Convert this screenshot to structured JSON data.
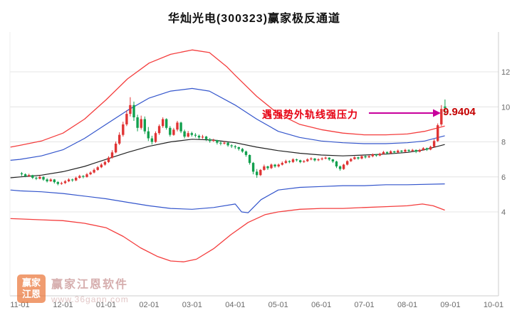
{
  "title": "华灿光电(300323)赢家极反通道",
  "annotation": {
    "text": "遇强势外轨线强压力",
    "price": "9.9404",
    "arrow_color": "#c8009c",
    "text_color": "#e60012"
  },
  "watermark": {
    "logo_line1": "赢家",
    "logo_line2": "江恩",
    "name": "赢家江恩软件",
    "url": "www.36gann.com"
  },
  "chart_data": {
    "type": "candlestick",
    "title": "华灿光电(300323)赢家极反通道",
    "xlabel": "",
    "ylabel": "",
    "ylim": [
      0,
      14
    ],
    "grid": true,
    "last_price": 9.9404,
    "y_ticks": [
      12,
      10,
      8,
      6,
      4
    ],
    "x_ticks": [
      "11-01",
      "12-01",
      "01-01",
      "02-01",
      "03-01",
      "04-01",
      "05-01",
      "06-01",
      "07-01",
      "08-01",
      "09-01",
      "10-01"
    ],
    "candles_per_month": 11.9,
    "colors": {
      "up": "#e03434",
      "down": "#12a04e",
      "grid": "#e4e4e4",
      "frame": "#cccccc",
      "axis_text": "#6b6b6b"
    },
    "lines": [
      {
        "name": "upper-outer-rail-line",
        "color": "#f43d3d",
        "width": 1.3,
        "points": [
          [
            -0.22,
            7.7
          ],
          [
            0,
            7.8
          ],
          [
            0.5,
            8.05
          ],
          [
            1,
            8.5
          ],
          [
            1.5,
            9.3
          ],
          [
            2,
            10.4
          ],
          [
            2.5,
            11.6
          ],
          [
            3,
            12.5
          ],
          [
            3.5,
            13.0
          ],
          [
            4,
            13.25
          ],
          [
            4.4,
            13.1
          ],
          [
            4.8,
            12.3
          ],
          [
            5,
            11.8
          ],
          [
            5.5,
            10.6
          ],
          [
            6,
            9.6
          ],
          [
            6.5,
            9.0
          ],
          [
            7,
            8.7
          ],
          [
            7.5,
            8.5
          ],
          [
            8,
            8.4
          ],
          [
            8.5,
            8.4
          ],
          [
            9,
            8.45
          ],
          [
            9.4,
            8.6
          ],
          [
            9.87,
            8.9
          ]
        ]
      },
      {
        "name": "upper-inner-rail-line",
        "color": "#3355cc",
        "width": 1.2,
        "points": [
          [
            -0.22,
            6.95
          ],
          [
            0,
            7.0
          ],
          [
            0.5,
            7.2
          ],
          [
            1,
            7.55
          ],
          [
            1.5,
            8.2
          ],
          [
            2,
            9.0
          ],
          [
            2.5,
            9.8
          ],
          [
            3,
            10.5
          ],
          [
            3.5,
            10.9
          ],
          [
            4,
            11.05
          ],
          [
            4.4,
            10.9
          ],
          [
            5,
            10.1
          ],
          [
            5.5,
            9.3
          ],
          [
            6,
            8.6
          ],
          [
            6.5,
            8.25
          ],
          [
            7,
            8.05
          ],
          [
            7.5,
            7.95
          ],
          [
            8,
            7.9
          ],
          [
            8.5,
            7.9
          ],
          [
            9,
            7.95
          ],
          [
            9.4,
            8.05
          ],
          [
            9.87,
            8.35
          ]
        ]
      },
      {
        "name": "middle-trend-line",
        "color": "#222222",
        "width": 1.2,
        "points": [
          [
            -0.22,
            5.95
          ],
          [
            0,
            6.0
          ],
          [
            0.5,
            6.1
          ],
          [
            1,
            6.3
          ],
          [
            1.5,
            6.6
          ],
          [
            2,
            7.0
          ],
          [
            2.5,
            7.4
          ],
          [
            3,
            7.75
          ],
          [
            3.5,
            8.0
          ],
          [
            4,
            8.15
          ],
          [
            4.5,
            8.1
          ],
          [
            5,
            7.95
          ],
          [
            5.5,
            7.7
          ],
          [
            6,
            7.5
          ],
          [
            6.5,
            7.35
          ],
          [
            7,
            7.25
          ],
          [
            7.5,
            7.2
          ],
          [
            8,
            7.25
          ],
          [
            8.5,
            7.3
          ],
          [
            9,
            7.4
          ],
          [
            9.4,
            7.55
          ],
          [
            9.87,
            7.85
          ]
        ]
      },
      {
        "name": "lower-inner-rail-line",
        "color": "#3355cc",
        "width": 1.2,
        "points": [
          [
            -0.22,
            5.25
          ],
          [
            0,
            5.2
          ],
          [
            0.5,
            5.15
          ],
          [
            1,
            5.05
          ],
          [
            1.5,
            4.9
          ],
          [
            2,
            4.75
          ],
          [
            2.5,
            4.55
          ],
          [
            3,
            4.35
          ],
          [
            3.5,
            4.2
          ],
          [
            4,
            4.15
          ],
          [
            4.5,
            4.25
          ],
          [
            5,
            4.45
          ],
          [
            5.15,
            4.0
          ],
          [
            5.3,
            3.95
          ],
          [
            5.6,
            4.7
          ],
          [
            6,
            5.25
          ],
          [
            6.5,
            5.4
          ],
          [
            7,
            5.45
          ],
          [
            7.5,
            5.5
          ],
          [
            8,
            5.5
          ],
          [
            8.5,
            5.55
          ],
          [
            9,
            5.55
          ],
          [
            9.87,
            5.6
          ]
        ]
      },
      {
        "name": "lower-outer-rail-line",
        "color": "#f43d3d",
        "width": 1.3,
        "points": [
          [
            -0.22,
            3.62
          ],
          [
            0,
            3.6
          ],
          [
            0.5,
            3.55
          ],
          [
            1,
            3.5
          ],
          [
            1.5,
            3.35
          ],
          [
            2,
            3.1
          ],
          [
            2.4,
            2.6
          ],
          [
            2.8,
            1.95
          ],
          [
            3.2,
            1.45
          ],
          [
            3.5,
            1.2
          ],
          [
            3.8,
            1.15
          ],
          [
            4.1,
            1.3
          ],
          [
            4.5,
            1.9
          ],
          [
            4.9,
            2.7
          ],
          [
            5.3,
            3.4
          ],
          [
            5.7,
            3.85
          ],
          [
            6,
            4.0
          ],
          [
            6.5,
            4.15
          ],
          [
            7,
            4.2
          ],
          [
            7.5,
            4.2
          ],
          [
            8,
            4.25
          ],
          [
            8.5,
            4.3
          ],
          [
            9,
            4.35
          ],
          [
            9.35,
            4.45
          ],
          [
            9.6,
            4.35
          ],
          [
            9.87,
            4.1
          ]
        ]
      }
    ],
    "candles": [
      [
        6.2,
        6.28,
        6.05,
        6.15
      ],
      [
        6.15,
        6.2,
        5.98,
        6.05
      ],
      [
        6.05,
        6.18,
        6.0,
        6.1
      ],
      [
        6.1,
        6.12,
        5.88,
        5.95
      ],
      [
        5.95,
        6.02,
        5.82,
        5.9
      ],
      [
        5.9,
        6.08,
        5.86,
        6.0
      ],
      [
        6.0,
        6.04,
        5.78,
        5.85
      ],
      [
        5.85,
        5.92,
        5.68,
        5.75
      ],
      [
        5.75,
        5.92,
        5.72,
        5.85
      ],
      [
        5.85,
        5.88,
        5.62,
        5.7
      ],
      [
        5.7,
        5.76,
        5.52,
        5.6
      ],
      [
        5.6,
        5.72,
        5.55,
        5.65
      ],
      [
        5.65,
        5.82,
        5.6,
        5.75
      ],
      [
        5.75,
        5.92,
        5.7,
        5.85
      ],
      [
        5.85,
        5.9,
        5.72,
        5.8
      ],
      [
        5.8,
        6.02,
        5.76,
        5.95
      ],
      [
        5.95,
        6.12,
        5.9,
        6.05
      ],
      [
        6.05,
        6.1,
        5.92,
        6.0
      ],
      [
        6.0,
        6.22,
        5.96,
        6.15
      ],
      [
        6.15,
        6.32,
        6.1,
        6.25
      ],
      [
        6.25,
        6.48,
        6.2,
        6.4
      ],
      [
        6.4,
        6.62,
        6.35,
        6.55
      ],
      [
        6.55,
        6.78,
        6.5,
        6.7
      ],
      [
        6.7,
        6.92,
        6.64,
        6.85
      ],
      [
        6.85,
        7.18,
        6.8,
        7.1
      ],
      [
        7.1,
        7.52,
        7.05,
        7.4
      ],
      [
        7.4,
        8.02,
        7.35,
        7.9
      ],
      [
        7.9,
        8.55,
        7.82,
        8.4
      ],
      [
        8.4,
        9.15,
        8.3,
        9.0
      ],
      [
        9.0,
        9.8,
        8.9,
        9.6
      ],
      [
        9.6,
        10.55,
        9.45,
        10.1
      ],
      [
        10.1,
        10.3,
        9.2,
        9.4
      ],
      [
        9.4,
        9.55,
        8.6,
        8.8
      ],
      [
        8.8,
        9.5,
        8.7,
        9.3
      ],
      [
        9.3,
        9.45,
        8.45,
        8.6
      ],
      [
        8.6,
        8.85,
        8.05,
        8.2
      ],
      [
        8.2,
        8.35,
        7.85,
        8.0
      ],
      [
        8.0,
        8.6,
        7.95,
        8.5
      ],
      [
        8.5,
        9.0,
        8.4,
        8.9
      ],
      [
        8.9,
        9.4,
        8.8,
        9.3
      ],
      [
        9.3,
        9.35,
        8.7,
        8.8
      ],
      [
        8.8,
        8.9,
        8.3,
        8.4
      ],
      [
        8.4,
        8.8,
        8.35,
        8.7
      ],
      [
        8.7,
        9.2,
        8.6,
        9.1
      ],
      [
        9.1,
        9.15,
        8.5,
        8.6
      ],
      [
        8.6,
        8.7,
        8.2,
        8.3
      ],
      [
        8.3,
        8.62,
        8.25,
        8.5
      ],
      [
        8.5,
        8.58,
        8.3,
        8.4
      ],
      [
        8.4,
        8.5,
        8.25,
        8.35
      ],
      [
        8.35,
        8.42,
        8.15,
        8.25
      ],
      [
        8.25,
        8.4,
        8.18,
        8.3
      ],
      [
        8.3,
        8.34,
        8.05,
        8.15
      ],
      [
        8.15,
        8.22,
        7.95,
        8.05
      ],
      [
        8.05,
        8.18,
        8.0,
        8.1
      ],
      [
        8.1,
        8.12,
        7.85,
        7.95
      ],
      [
        7.95,
        8.02,
        7.8,
        7.9
      ],
      [
        7.9,
        8.03,
        7.85,
        7.95
      ],
      [
        7.95,
        7.98,
        7.72,
        7.8
      ],
      [
        7.8,
        7.86,
        7.65,
        7.75
      ],
      [
        7.75,
        7.82,
        7.6,
        7.7
      ],
      [
        7.7,
        7.72,
        7.5,
        7.6
      ],
      [
        7.6,
        7.65,
        7.38,
        7.45
      ],
      [
        7.45,
        7.5,
        7.15,
        7.25
      ],
      [
        7.25,
        7.28,
        6.7,
        6.8
      ],
      [
        6.8,
        6.85,
        6.15,
        6.3
      ],
      [
        6.3,
        6.45,
        5.95,
        6.1
      ],
      [
        6.1,
        6.45,
        6.05,
        6.4
      ],
      [
        6.4,
        6.7,
        6.35,
        6.6
      ],
      [
        6.6,
        6.64,
        6.4,
        6.5
      ],
      [
        6.5,
        6.76,
        6.45,
        6.7
      ],
      [
        6.7,
        6.74,
        6.52,
        6.6
      ],
      [
        6.6,
        6.76,
        6.54,
        6.7
      ],
      [
        6.7,
        6.88,
        6.65,
        6.8
      ],
      [
        6.8,
        6.98,
        6.75,
        6.9
      ],
      [
        6.9,
        6.95,
        6.78,
        6.85
      ],
      [
        6.85,
        7.06,
        6.8,
        7.0
      ],
      [
        7.0,
        7.04,
        6.88,
        6.95
      ],
      [
        6.95,
        6.98,
        6.78,
        6.85
      ],
      [
        6.85,
        6.96,
        6.8,
        6.9
      ],
      [
        6.9,
        7.06,
        6.85,
        7.0
      ],
      [
        7.0,
        7.12,
        6.95,
        7.05
      ],
      [
        7.05,
        7.08,
        6.88,
        6.95
      ],
      [
        6.95,
        7.06,
        6.9,
        7.0
      ],
      [
        7.0,
        7.12,
        6.95,
        7.05
      ],
      [
        7.05,
        7.16,
        7.0,
        7.1
      ],
      [
        7.1,
        7.12,
        6.92,
        7.0
      ],
      [
        7.0,
        7.02,
        6.8,
        6.88
      ],
      [
        6.88,
        6.92,
        6.5,
        6.6
      ],
      [
        6.6,
        6.65,
        6.35,
        6.45
      ],
      [
        6.45,
        6.75,
        6.4,
        6.7
      ],
      [
        6.7,
        6.95,
        6.65,
        6.9
      ],
      [
        6.9,
        7.08,
        6.85,
        7.02
      ],
      [
        7.02,
        7.18,
        6.98,
        7.12
      ],
      [
        7.12,
        7.15,
        6.98,
        7.05
      ],
      [
        7.05,
        7.24,
        7.0,
        7.18
      ],
      [
        7.18,
        7.22,
        7.05,
        7.12
      ],
      [
        7.12,
        7.24,
        7.08,
        7.18
      ],
      [
        7.18,
        7.34,
        7.12,
        7.28
      ],
      [
        7.28,
        7.31,
        7.15,
        7.22
      ],
      [
        7.22,
        7.38,
        7.18,
        7.32
      ],
      [
        7.32,
        7.48,
        7.28,
        7.42
      ],
      [
        7.42,
        7.45,
        7.28,
        7.35
      ],
      [
        7.35,
        7.52,
        7.3,
        7.46
      ],
      [
        7.46,
        7.49,
        7.34,
        7.4
      ],
      [
        7.4,
        7.56,
        7.36,
        7.5
      ],
      [
        7.5,
        7.53,
        7.38,
        7.44
      ],
      [
        7.44,
        7.6,
        7.4,
        7.54
      ],
      [
        7.54,
        7.57,
        7.42,
        7.48
      ],
      [
        7.48,
        7.6,
        7.44,
        7.54
      ],
      [
        7.54,
        7.56,
        7.36,
        7.44
      ],
      [
        7.44,
        7.6,
        7.4,
        7.54
      ],
      [
        7.54,
        7.7,
        7.5,
        7.64
      ],
      [
        7.64,
        7.67,
        7.48,
        7.56
      ],
      [
        7.56,
        7.78,
        7.52,
        7.72
      ],
      [
        7.72,
        8.15,
        7.66,
        8.05
      ],
      [
        8.05,
        9.05,
        8.0,
        8.95
      ],
      [
        9.0,
        10.1,
        8.9,
        9.88
      ],
      [
        10.02,
        10.42,
        9.55,
        9.94
      ]
    ]
  }
}
